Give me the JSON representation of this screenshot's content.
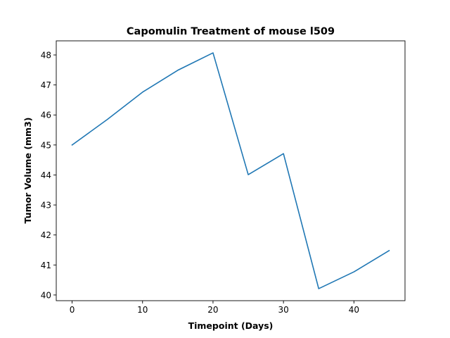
{
  "chart_data": {
    "type": "line",
    "title": "Capomulin Treatment of mouse l509",
    "xlabel": "Timepoint (Days)",
    "ylabel": "Tumor Volume (mm3)",
    "x": [
      0,
      5,
      10,
      15,
      20,
      25,
      30,
      35,
      40,
      45
    ],
    "series": [
      {
        "values": [
          45.0,
          45.85,
          46.76,
          47.49,
          48.07,
          44.01,
          44.71,
          40.21,
          40.77,
          41.48
        ],
        "color": "#1f77b4"
      }
    ],
    "xlim": [
      -2.25,
      47.25
    ],
    "ylim": [
      39.81,
      48.47
    ],
    "xticks": [
      0,
      10,
      20,
      30,
      40
    ],
    "yticks": [
      40,
      41,
      42,
      43,
      44,
      45,
      46,
      47,
      48
    ],
    "grid": false,
    "legend": "none"
  }
}
